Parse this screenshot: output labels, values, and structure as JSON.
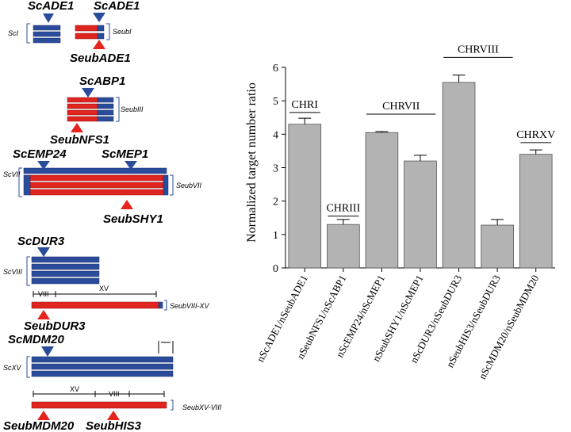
{
  "diagram": {
    "labels": [
      "ScADE1",
      "ScADE1",
      "ScI",
      "SeubI",
      "SeubADE1",
      "ScABP1",
      "SeubIII",
      "SeubNFS1",
      "ScEMP24",
      "ScMEP1",
      "ScVII",
      "SeubVII",
      "SeubSHY1",
      "ScDUR3",
      "ScVIII",
      "VIII",
      "XV",
      "SeubVIII-XV",
      "SeubDUR3",
      "ScMDM20",
      "ScXV",
      "XV",
      "VIII",
      "SeubXV-VIII",
      "SeubMDM20",
      "SeubHIS3"
    ]
  },
  "chart_data": {
    "type": "bar",
    "y_label": "Normalized target number ratio",
    "categories": [
      "nScADE1/nSeubADE1",
      "nSeubNFS1/nScABP1",
      "nScEMP24/nScMEP1",
      "nSeubSHY1/nScMEP1",
      "nScDUR3/nSeubDUR3",
      "nSeubHIS3/nSeubDUR3",
      "nScMDM20/nSeubMDM20"
    ],
    "values": [
      4.3,
      1.3,
      4.05,
      3.2,
      5.55,
      1.28,
      3.4
    ],
    "errors": [
      0.18,
      0.15,
      0.03,
      0.17,
      0.22,
      0.17,
      0.13
    ],
    "color": "#b3b3b3",
    "ylim": [
      0,
      6
    ],
    "yticks": [
      0,
      1,
      2,
      3,
      4,
      5,
      6
    ],
    "annotations": [
      "CHRI",
      "CHRIII",
      "CHRVII",
      "CHRVIII",
      "CHRXV"
    ]
  }
}
